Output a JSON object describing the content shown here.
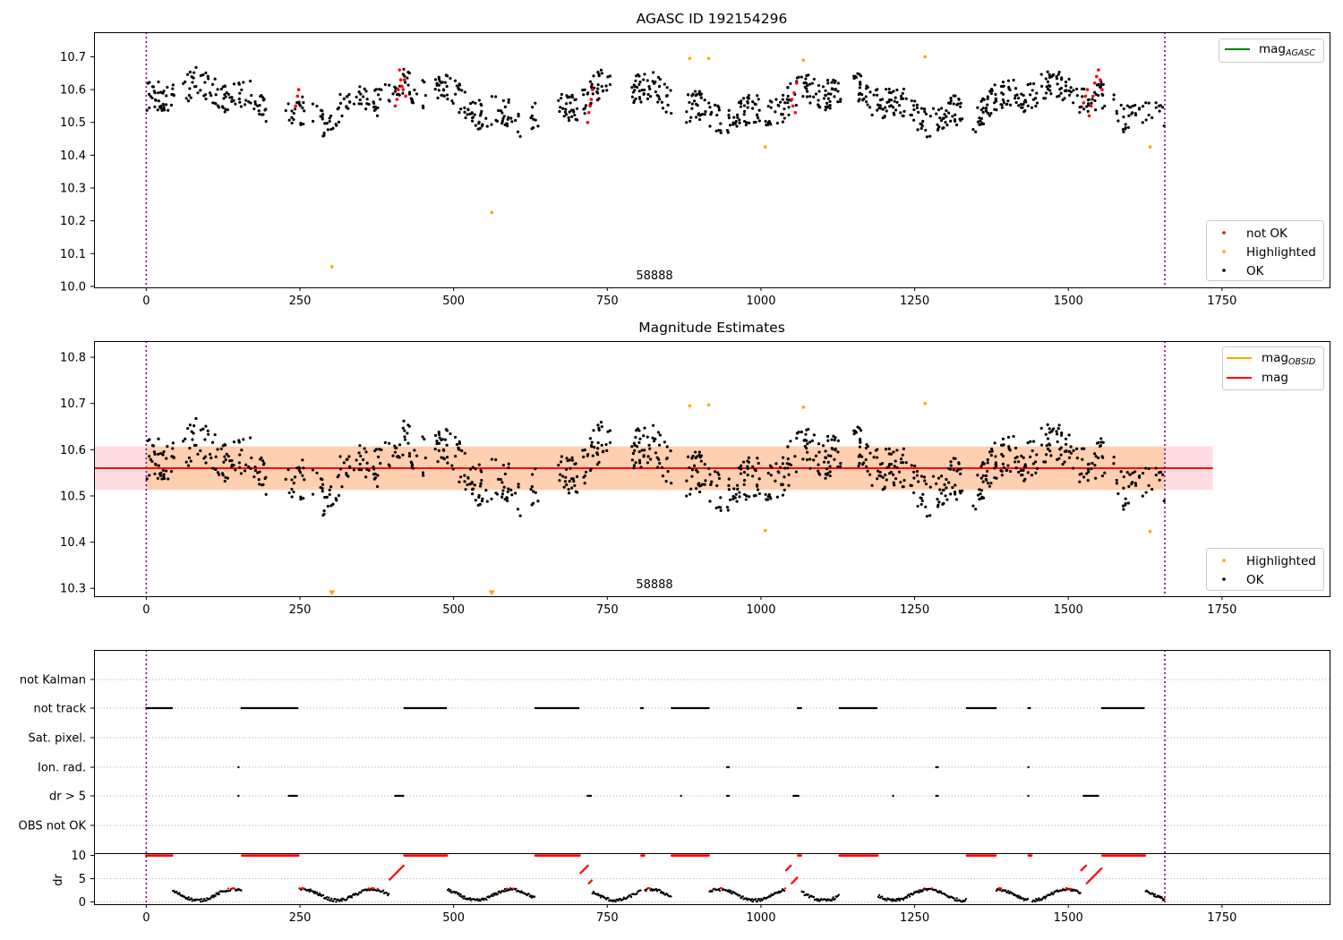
{
  "chart_data": [
    {
      "type": "scatter",
      "title": "AGASC ID 192154296",
      "annotation": "58888",
      "xlim": [
        -85,
        1925
      ],
      "ylim": [
        9.997,
        10.775
      ],
      "xticks": [
        0,
        250,
        500,
        750,
        1000,
        1250,
        1500,
        1750
      ],
      "yticks": [
        10.0,
        10.1,
        10.2,
        10.3,
        10.4,
        10.5,
        10.6,
        10.7
      ],
      "vlines": [
        0,
        1657
      ],
      "line_legend": [
        {
          "label": "mag",
          "subscript": "AGASC",
          "color": "#008000"
        }
      ],
      "point_legend": [
        {
          "label": "not OK",
          "color": "#ff0000"
        },
        {
          "label": "Highlighted",
          "color": "#ffa500"
        },
        {
          "label": "OK",
          "color": "#000000"
        }
      ],
      "ok_series": {
        "color": "#000000",
        "x_range": [
          0,
          1657
        ],
        "points_approx": 1200,
        "ylim_typical": [
          10.44,
          10.69
        ]
      },
      "not_ok_points": [
        [
          243,
          10.55
        ],
        [
          246,
          10.58
        ],
        [
          248,
          10.6
        ],
        [
          405,
          10.55
        ],
        [
          408,
          10.57
        ],
        [
          410,
          10.6
        ],
        [
          412,
          10.66
        ],
        [
          414,
          10.63
        ],
        [
          416,
          10.61
        ],
        [
          418,
          10.6
        ],
        [
          420,
          10.63
        ],
        [
          422,
          10.58
        ],
        [
          718,
          10.5
        ],
        [
          720,
          10.53
        ],
        [
          722,
          10.55
        ],
        [
          724,
          10.57
        ],
        [
          726,
          10.6
        ],
        [
          1050,
          10.57
        ],
        [
          1052,
          10.55
        ],
        [
          1054,
          10.59
        ],
        [
          1056,
          10.53
        ],
        [
          1058,
          10.62
        ],
        [
          1525,
          10.56
        ],
        [
          1528,
          10.58
        ],
        [
          1531,
          10.6
        ],
        [
          1534,
          10.52
        ],
        [
          1537,
          10.55
        ],
        [
          1540,
          10.58
        ],
        [
          1543,
          10.62
        ],
        [
          1546,
          10.64
        ],
        [
          1549,
          10.66
        ],
        [
          1552,
          10.63
        ],
        [
          1555,
          10.6
        ]
      ],
      "highlighted_points": [
        [
          302,
          10.06
        ],
        [
          562,
          10.225
        ],
        [
          884,
          10.695
        ],
        [
          915,
          10.695
        ],
        [
          1007,
          10.425
        ],
        [
          1069,
          10.69
        ],
        [
          1267,
          10.7
        ],
        [
          1633,
          10.425
        ]
      ]
    },
    {
      "type": "scatter",
      "title": "Magnitude Estimates",
      "annotation": "58888",
      "xlim": [
        -85,
        1925
      ],
      "ylim": [
        10.283,
        10.835
      ],
      "xticks": [
        0,
        250,
        500,
        750,
        1000,
        1250,
        1500,
        1750
      ],
      "yticks": [
        10.3,
        10.4,
        10.5,
        10.6,
        10.7,
        10.8
      ],
      "vlines": [
        0,
        1657
      ],
      "mag_line": {
        "value": 10.56,
        "x_range": [
          -85,
          1735
        ],
        "color": "#ff0000"
      },
      "mag_band": {
        "range": [
          10.513,
          10.607
        ],
        "x_range": [
          -85,
          1735
        ],
        "fill": "#ffc0cb"
      },
      "obsid_band": {
        "range": [
          10.513,
          10.607
        ],
        "x_range": [
          0,
          1657
        ],
        "fill": "#ffa500"
      },
      "line_legend": [
        {
          "label": "mag",
          "subscript": "OBSID",
          "color": "#ffa500"
        },
        {
          "label": "mag",
          "subscript": "",
          "color": "#ff0000"
        }
      ],
      "point_legend": [
        {
          "label": "Highlighted",
          "color": "#ffa500"
        },
        {
          "label": "OK",
          "color": "#000000"
        }
      ],
      "highlighted_points": [
        [
          884,
          10.695
        ],
        [
          915,
          10.697
        ],
        [
          1007,
          10.425
        ],
        [
          1069,
          10.692
        ],
        [
          1267,
          10.7
        ],
        [
          1633,
          10.423
        ]
      ],
      "offscale_markers": [
        [
          302,
          10.29
        ],
        [
          562,
          10.29
        ]
      ]
    },
    {
      "type": "scatter",
      "title": "",
      "xlim": [
        -85,
        1925
      ],
      "xticks": [
        0,
        250,
        500,
        750,
        1000,
        1250,
        1500,
        1750
      ],
      "vlines": [
        0,
        1657
      ],
      "flag_rows": [
        "not Kalman",
        "not track",
        "Sat. pixel.",
        "Ion. rad.",
        "dr > 5",
        "OBS not OK"
      ],
      "flag_segments": {
        "not track": [
          [
            0,
            42
          ],
          [
            155,
            248
          ],
          [
            420,
            490
          ],
          [
            633,
            705
          ],
          [
            805,
            810
          ],
          [
            855,
            915
          ],
          [
            1060,
            1066
          ],
          [
            1128,
            1190
          ],
          [
            1335,
            1382
          ],
          [
            1435,
            1440
          ],
          [
            1555,
            1625
          ]
        ],
        "Ion. rad.": [
          [
            150,
            151
          ],
          [
            945,
            950
          ],
          [
            1285,
            1290
          ],
          [
            1435,
            1436
          ]
        ],
        "dr > 5": [
          [
            150,
            151
          ],
          [
            232,
            245
          ],
          [
            405,
            420
          ],
          [
            718,
            725
          ],
          [
            870,
            871
          ],
          [
            945,
            950
          ],
          [
            1053,
            1063
          ],
          [
            1215,
            1216
          ],
          [
            1285,
            1290
          ],
          [
            1435,
            1436
          ],
          [
            1525,
            1550
          ]
        ]
      },
      "dr_ylabel": "dr",
      "dr_ylim": [
        -0.5,
        10.5
      ],
      "dr_yticks": [
        0,
        5,
        10
      ]
    }
  ]
}
